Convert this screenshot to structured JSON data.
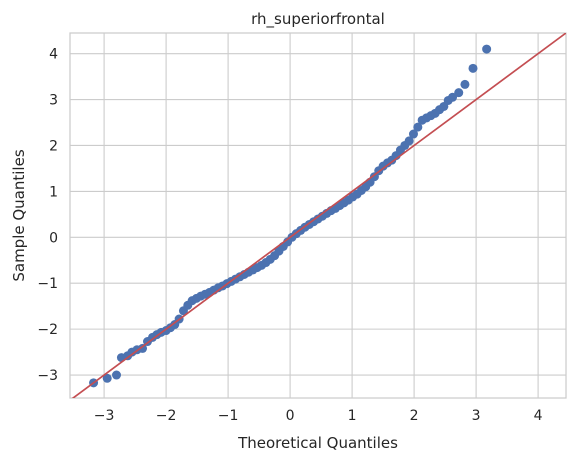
{
  "chart_data": {
    "type": "scatter",
    "title": "rh_superiorfrontal",
    "xlabel": "Theoretical Quantiles",
    "ylabel": "Sample Quantiles",
    "xlim": [
      -3.55,
      4.45
    ],
    "ylim": [
      -3.5,
      4.45
    ],
    "x_ticks": [
      -3,
      -2,
      -1,
      0,
      1,
      2,
      3,
      4
    ],
    "y_ticks": [
      -3,
      -2,
      -1,
      0,
      1,
      2,
      3,
      4
    ],
    "x_tick_labels": [
      "−3",
      "−2",
      "−1",
      "0",
      "1",
      "2",
      "3",
      "4"
    ],
    "y_tick_labels": [
      "−3",
      "−2",
      "−1",
      "0",
      "1",
      "2",
      "3",
      "4"
    ],
    "grid": true,
    "reference_line": {
      "slope": 1,
      "intercept": 0,
      "color": "#c44e52"
    },
    "series": [
      {
        "marker_color": "#4c72b0",
        "x": [
          -3.17,
          -2.95,
          -2.8,
          -2.72,
          -2.62,
          -2.55,
          -2.47,
          -2.38,
          -2.3,
          -2.22,
          -2.15,
          -2.08,
          -2.0,
          -1.93,
          -1.86,
          -1.79,
          -1.72,
          -1.65,
          -1.58,
          -1.51,
          -1.44,
          -1.37,
          -1.3,
          -1.23,
          -1.16,
          -1.09,
          -1.02,
          -0.95,
          -0.88,
          -0.81,
          -0.74,
          -0.67,
          -0.6,
          -0.53,
          -0.46,
          -0.39,
          -0.32,
          -0.25,
          -0.18,
          -0.11,
          -0.04,
          0.03,
          0.1,
          0.17,
          0.24,
          0.31,
          0.38,
          0.45,
          0.52,
          0.59,
          0.66,
          0.73,
          0.8,
          0.87,
          0.94,
          1.01,
          1.08,
          1.15,
          1.22,
          1.29,
          1.36,
          1.43,
          1.5,
          1.57,
          1.64,
          1.71,
          1.78,
          1.85,
          1.92,
          1.99,
          2.06,
          2.13,
          2.2,
          2.27,
          2.34,
          2.41,
          2.48,
          2.55,
          2.62,
          2.72,
          2.82,
          2.95,
          3.17
        ],
        "y": [
          -3.17,
          -3.07,
          -3.0,
          -2.62,
          -2.58,
          -2.5,
          -2.45,
          -2.42,
          -2.27,
          -2.18,
          -2.12,
          -2.07,
          -2.03,
          -1.97,
          -1.9,
          -1.78,
          -1.6,
          -1.48,
          -1.38,
          -1.33,
          -1.28,
          -1.24,
          -1.2,
          -1.15,
          -1.1,
          -1.06,
          -1.01,
          -0.96,
          -0.91,
          -0.86,
          -0.81,
          -0.76,
          -0.71,
          -0.66,
          -0.61,
          -0.55,
          -0.48,
          -0.4,
          -0.3,
          -0.2,
          -0.1,
          0.0,
          0.08,
          0.15,
          0.22,
          0.28,
          0.34,
          0.4,
          0.46,
          0.52,
          0.58,
          0.63,
          0.69,
          0.75,
          0.81,
          0.88,
          0.94,
          1.02,
          1.1,
          1.2,
          1.32,
          1.45,
          1.55,
          1.62,
          1.68,
          1.78,
          1.9,
          2.0,
          2.1,
          2.25,
          2.4,
          2.55,
          2.6,
          2.65,
          2.7,
          2.78,
          2.85,
          2.98,
          3.05,
          3.15,
          3.33,
          3.68,
          4.1
        ]
      }
    ]
  }
}
